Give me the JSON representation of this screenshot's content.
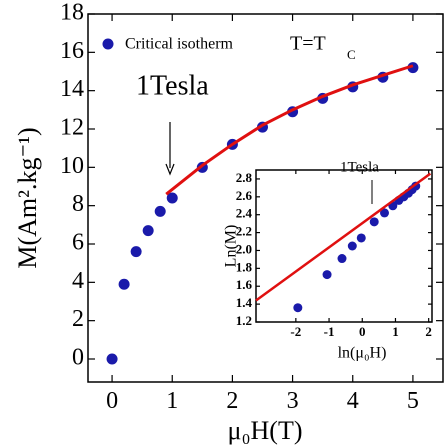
{
  "chart_data": [
    {
      "type": "scatter",
      "xlabel": "μ₀H(T)",
      "ylabel": "M(Am².kg⁻¹)",
      "xlim": [
        -0.4,
        5.5
      ],
      "xticks": [
        0,
        1,
        2,
        3,
        4,
        5
      ],
      "ylim": [
        -1.2,
        18
      ],
      "yticks": [
        0,
        2,
        4,
        6,
        8,
        10,
        12,
        14,
        16,
        18
      ],
      "series": [
        {
          "name": "Critical isotherm",
          "color": "#1a1aaa",
          "mode": "markers",
          "x": [
            0,
            0.2,
            0.4,
            0.6,
            0.8,
            1,
            1.5,
            2,
            2.5,
            3,
            3.5,
            4,
            4.5,
            5
          ],
          "values": [
            0,
            3.9,
            5.6,
            6.7,
            7.7,
            8.4,
            10.0,
            11.2,
            12.1,
            12.9,
            13.6,
            14.2,
            14.7,
            15.2
          ]
        },
        {
          "color": "#e01010",
          "mode": "line",
          "x": [
            0.9,
            1.5,
            2,
            2.5,
            3,
            3.5,
            4,
            4.5,
            5
          ],
          "values": [
            8.6,
            10.1,
            11.2,
            12.2,
            13.0,
            13.7,
            14.3,
            14.8,
            15.3
          ]
        }
      ],
      "condition": {
        "text": "T=T",
        "subscript": "C"
      },
      "annotations": [
        "1Tesla"
      ]
    },
    {
      "type": "scatter",
      "xlabel": "ln(μ₀H)",
      "ylabel": "Ln(M)",
      "xlim": [
        -3.2,
        2.1
      ],
      "xticks": [
        -2,
        -1,
        0,
        1,
        2
      ],
      "ylim": [
        1.2,
        2.9
      ],
      "yticks": [
        1.2,
        1.4,
        1.6,
        1.8,
        {
          "value": 2,
          "label": "2.0"
        },
        2.2,
        2.4,
        2.6,
        2.8
      ],
      "series": [
        {
          "color": "#1a1aaa",
          "mode": "markers",
          "x": [
            -1.94,
            -1.06,
            -0.61,
            -0.3,
            -0.03,
            0.36,
            0.67,
            0.92,
            1.1,
            1.25,
            1.39,
            1.5,
            1.61
          ],
          "values": [
            1.36,
            1.73,
            1.91,
            2.05,
            2.14,
            2.32,
            2.42,
            2.5,
            2.56,
            2.6,
            2.64,
            2.68,
            2.72
          ]
        },
        {
          "color": "#e01010",
          "mode": "line",
          "x": [
            -3.2,
            2.05
          ],
          "values": [
            1.44,
            2.86
          ]
        }
      ],
      "annotations": [
        "1Tesla"
      ]
    }
  ]
}
